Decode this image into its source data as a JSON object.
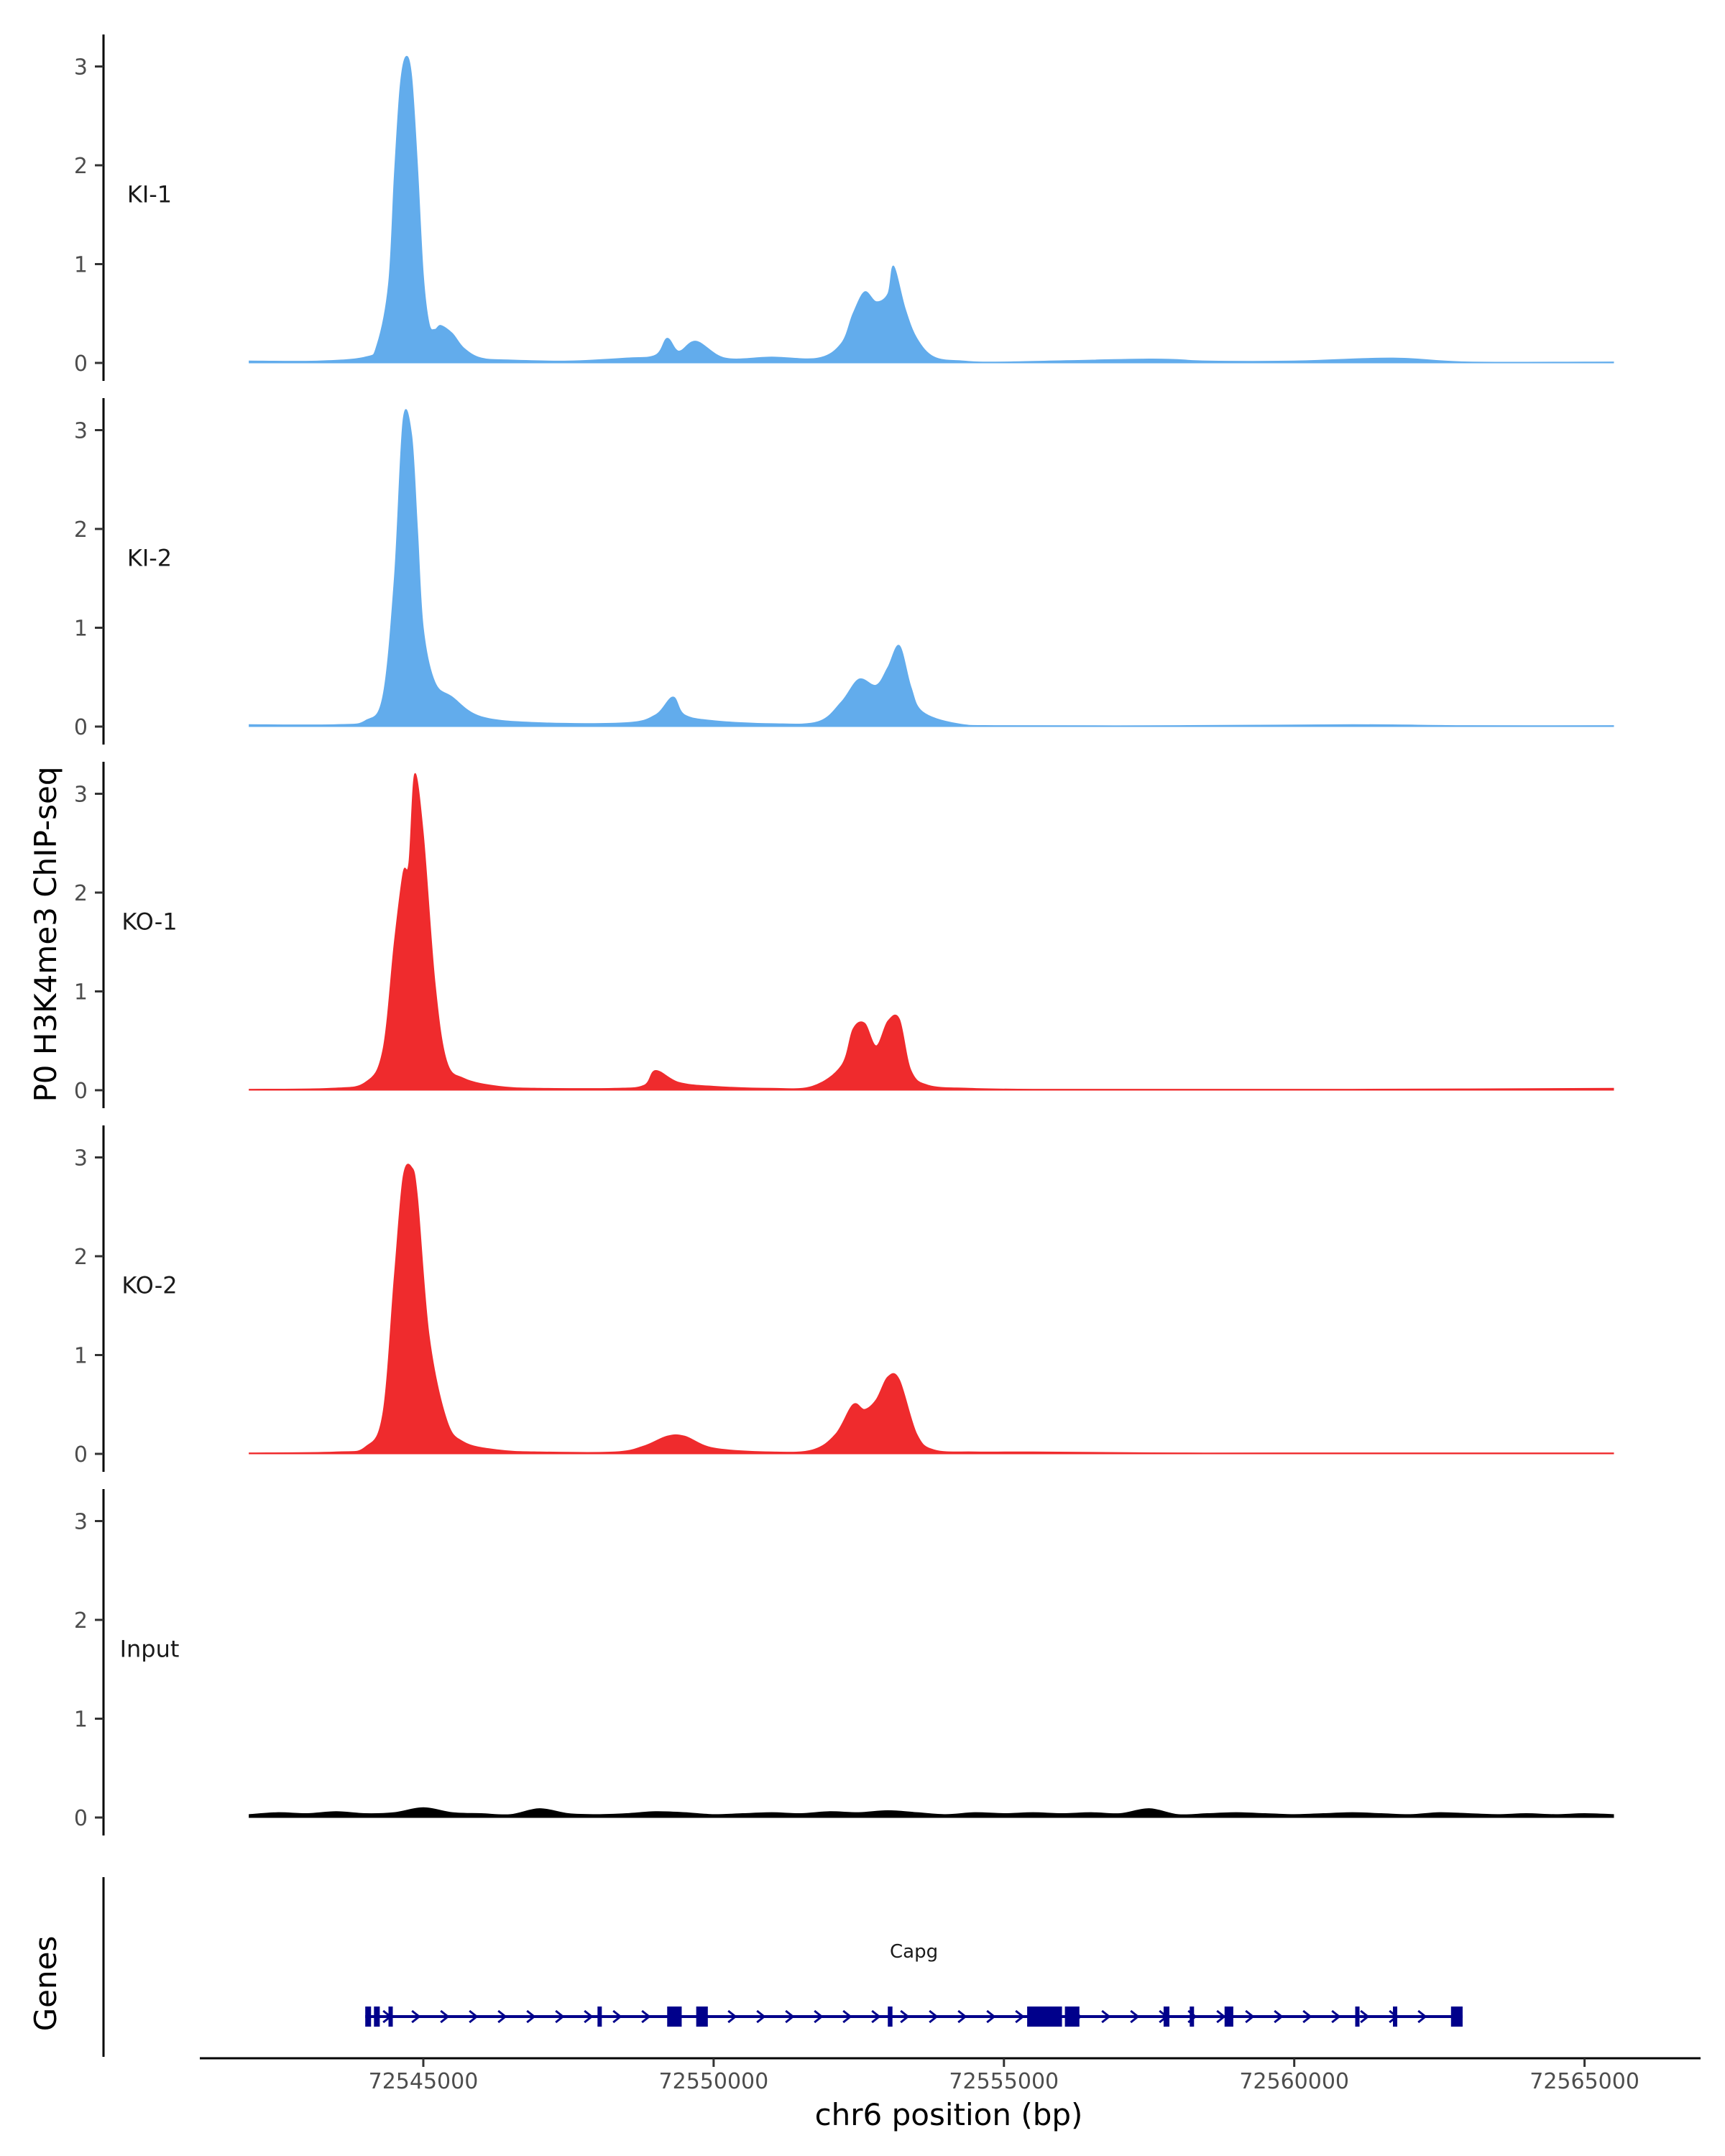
{
  "chart_data": {
    "type": "area",
    "ylabel": "P0 H3K4me3 ChIP-seq",
    "xlabel": "chr6 position (bp)",
    "genes_label": "Genes",
    "xlim": [
      72541200,
      72566800
    ],
    "ylim": [
      0,
      3.3
    ],
    "y_ticks": [
      0,
      1,
      2,
      3
    ],
    "x_ticks": [
      72545000,
      72550000,
      72555000,
      72560000,
      72565000
    ],
    "x_tick_labels": [
      "72545000",
      "72550000",
      "72555000",
      "72560000",
      "72565000"
    ],
    "tracks": [
      {
        "name": "KI-1",
        "color": "#62acec",
        "x": [
          72542000,
          72543200,
          72544000,
          72544200,
          72544400,
          72544500,
          72544600,
          72544700,
          72544800,
          72544900,
          72545000,
          72545100,
          72545200,
          72545300,
          72545500,
          72545700,
          72546000,
          72546500,
          72547500,
          72548500,
          72549000,
          72549200,
          72549400,
          72549700,
          72550200,
          72551000,
          72551800,
          72552200,
          72552400,
          72552600,
          72552800,
          72553000,
          72553100,
          72553300,
          72553500,
          72553800,
          72554300,
          72555000,
          72557500,
          72558500,
          72560000,
          72561700,
          72563000,
          72565500
        ],
        "values": [
          0.02,
          0.02,
          0.06,
          0.18,
          0.8,
          1.9,
          2.8,
          3.1,
          2.9,
          2.0,
          0.9,
          0.4,
          0.34,
          0.38,
          0.3,
          0.15,
          0.05,
          0.03,
          0.02,
          0.05,
          0.08,
          0.25,
          0.12,
          0.22,
          0.05,
          0.06,
          0.05,
          0.2,
          0.5,
          0.72,
          0.62,
          0.7,
          0.98,
          0.55,
          0.25,
          0.06,
          0.02,
          0.01,
          0.04,
          0.02,
          0.02,
          0.05,
          0.01,
          0.01
        ]
      },
      {
        "name": "KI-2",
        "color": "#62acec",
        "x": [
          72542000,
          72543500,
          72544000,
          72544300,
          72544500,
          72544650,
          72544800,
          72544900,
          72545000,
          72545200,
          72545500,
          72546000,
          72547000,
          72548500,
          72549000,
          72549300,
          72549500,
          72550000,
          72551000,
          72551800,
          72552200,
          72552500,
          72552800,
          72553000,
          72553200,
          72553400,
          72553600,
          72554200,
          72555000,
          72558000,
          72561000,
          72563000,
          72565500
        ],
        "values": [
          0.02,
          0.02,
          0.06,
          0.3,
          1.5,
          3.1,
          2.95,
          2.0,
          1.0,
          0.45,
          0.3,
          0.1,
          0.04,
          0.04,
          0.12,
          0.3,
          0.12,
          0.06,
          0.03,
          0.05,
          0.25,
          0.48,
          0.42,
          0.6,
          0.82,
          0.4,
          0.15,
          0.03,
          0.01,
          0.01,
          0.02,
          0.01,
          0.01
        ]
      },
      {
        "name": "KO-1",
        "color": "#ef2b2d",
        "x": [
          72542000,
          72543400,
          72544000,
          72544300,
          72544500,
          72544650,
          72544750,
          72544850,
          72545000,
          72545200,
          72545400,
          72545700,
          72546300,
          72547000,
          72548300,
          72548800,
          72549000,
          72549400,
          72550000,
          72551000,
          72551700,
          72552200,
          72552400,
          72552600,
          72552800,
          72553000,
          72553200,
          72553400,
          72553700,
          72554400,
          72555500,
          72558000,
          72561000,
          72565500
        ],
        "values": [
          0.01,
          0.02,
          0.08,
          0.4,
          1.5,
          2.2,
          2.3,
          3.2,
          2.6,
          1.1,
          0.3,
          0.12,
          0.04,
          0.02,
          0.02,
          0.05,
          0.2,
          0.08,
          0.04,
          0.02,
          0.04,
          0.25,
          0.62,
          0.68,
          0.45,
          0.7,
          0.72,
          0.2,
          0.05,
          0.02,
          0.01,
          0.01,
          0.01,
          0.02
        ]
      },
      {
        "name": "KO-2",
        "color": "#ef2b2d",
        "x": [
          72542000,
          72543500,
          72544000,
          72544300,
          72544500,
          72544650,
          72544800,
          72544900,
          72545100,
          72545400,
          72545700,
          72546300,
          72547000,
          72548300,
          72548800,
          72549200,
          72549500,
          72550000,
          72551000,
          72551700,
          72552100,
          72552400,
          72552600,
          72552800,
          72553000,
          72553200,
          72553500,
          72553800,
          72554500,
          72555500,
          72558000,
          72561000,
          72565500
        ],
        "values": [
          0.01,
          0.02,
          0.07,
          0.4,
          1.8,
          2.8,
          2.9,
          2.6,
          1.2,
          0.35,
          0.12,
          0.04,
          0.02,
          0.02,
          0.08,
          0.18,
          0.18,
          0.06,
          0.02,
          0.04,
          0.2,
          0.5,
          0.45,
          0.55,
          0.78,
          0.75,
          0.2,
          0.04,
          0.02,
          0.02,
          0.01,
          0.01,
          0.01
        ]
      },
      {
        "name": "Input",
        "color": "#000000",
        "x": [
          72542000,
          72542500,
          72543000,
          72543500,
          72544000,
          72544500,
          72545000,
          72545500,
          72546000,
          72546500,
          72547000,
          72547500,
          72548000,
          72548500,
          72549000,
          72549500,
          72550000,
          72550500,
          72551000,
          72551500,
          72552000,
          72552500,
          72553000,
          72553500,
          72554000,
          72554500,
          72555000,
          72555500,
          72556000,
          72556500,
          72557000,
          72557500,
          72558000,
          72558500,
          72559000,
          72559500,
          72560000,
          72560500,
          72561000,
          72561500,
          72562000,
          72562500,
          72563000,
          72563500,
          72564000,
          72564500,
          72565000,
          72565500
        ],
        "values": [
          0.03,
          0.05,
          0.04,
          0.06,
          0.04,
          0.05,
          0.1,
          0.05,
          0.04,
          0.03,
          0.09,
          0.04,
          0.03,
          0.04,
          0.06,
          0.05,
          0.03,
          0.04,
          0.05,
          0.04,
          0.06,
          0.05,
          0.07,
          0.05,
          0.03,
          0.05,
          0.04,
          0.05,
          0.04,
          0.05,
          0.04,
          0.09,
          0.03,
          0.04,
          0.05,
          0.04,
          0.03,
          0.04,
          0.05,
          0.04,
          0.03,
          0.05,
          0.04,
          0.03,
          0.04,
          0.03,
          0.04,
          0.03
        ]
      }
    ],
    "genes": [
      {
        "name": "Capg",
        "start": 72544000,
        "end": 72562900,
        "color": "#00008b",
        "exons": [
          [
            72544000,
            72544100
          ],
          [
            72544150,
            72544250
          ],
          [
            72544400,
            72544450
          ],
          [
            72548000,
            72548050
          ],
          [
            72549200,
            72549450
          ],
          [
            72549700,
            72549900
          ],
          [
            72553000,
            72553080
          ],
          [
            72555400,
            72556000
          ],
          [
            72556050,
            72556300
          ],
          [
            72557750,
            72557850
          ],
          [
            72558200,
            72558260
          ],
          [
            72558800,
            72558950
          ],
          [
            72561050,
            72561120
          ],
          [
            72561700,
            72561760
          ],
          [
            72562700,
            72562900
          ]
        ]
      }
    ]
  }
}
